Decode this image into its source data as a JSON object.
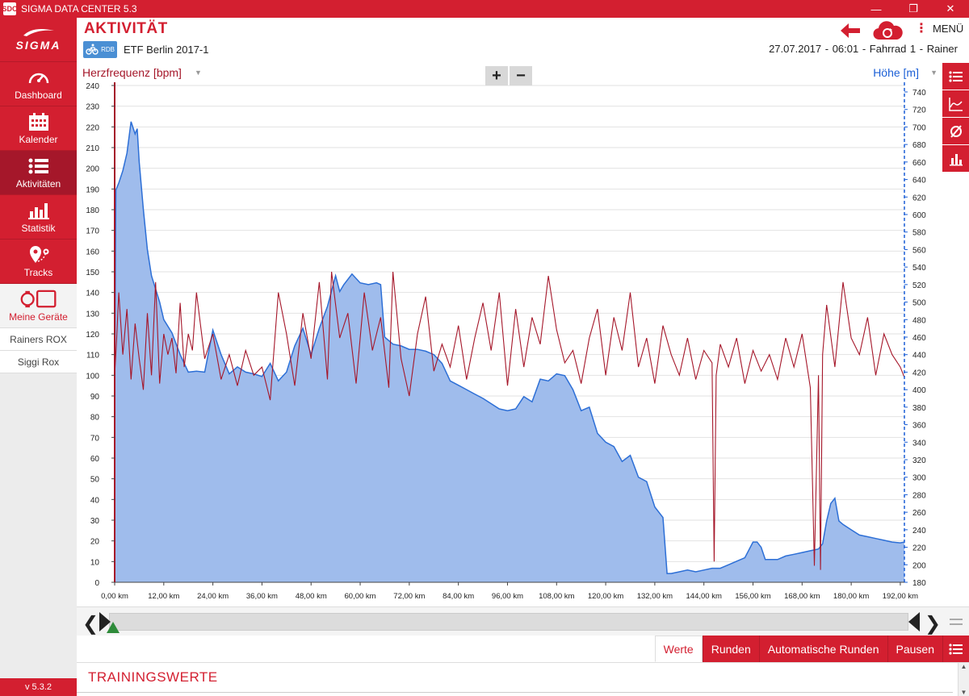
{
  "window": {
    "title": "SIGMA DATA CENTER 5.3",
    "icon_text": "SDC",
    "controls": {
      "minimize": "—",
      "restore": "❐",
      "close": "✕"
    }
  },
  "sidebar": {
    "brand": "SIGMA",
    "items": [
      {
        "label": "Dashboard",
        "icon": "gauge-icon"
      },
      {
        "label": "Kalender",
        "icon": "calendar-icon"
      },
      {
        "label": "Aktivitäten",
        "icon": "list-icon"
      },
      {
        "label": "Statistik",
        "icon": "bar-chart-icon"
      },
      {
        "label": "Tracks",
        "icon": "track-pin-icon"
      },
      {
        "label": "Meine Geräte",
        "icon": "devices-icon"
      }
    ],
    "devices": [
      "Rainers ROX",
      "Siggi Rox"
    ],
    "version": "v 5.3.2"
  },
  "header": {
    "title": "AKTIVITÄT",
    "sport_badge": "RDB",
    "activity_name": "ETF Berlin 2017-1",
    "meta": "27.07.2017  -  06:01  -  Fahrrad 1  -  Rainer",
    "menu_label": "MENÜ"
  },
  "chart_controls": {
    "zoom_in": "+",
    "zoom_out": "−"
  },
  "colors": {
    "accent": "#d31f30",
    "heart_rate": "#a5172a",
    "altitude_line": "#2d6fd6",
    "altitude_fill": "#9fbcec"
  },
  "tabs": [
    {
      "label": "Werte",
      "active": true
    },
    {
      "label": "Runden",
      "active": false
    },
    {
      "label": "Automatische Runden",
      "active": false
    },
    {
      "label": "Pausen",
      "active": false
    }
  ],
  "section_title": "TRAININGSWERTE",
  "chart_data": {
    "type": "line",
    "xlabel": "",
    "x_ticks": [
      "0,00 km",
      "12,00 km",
      "24,00 km",
      "36,00 km",
      "48,00 km",
      "60,00 km",
      "72,00 km",
      "84,00 km",
      "96,00 km",
      "108,00 km",
      "120,00 km",
      "132,00 km",
      "144,00 km",
      "156,00 km",
      "168,00 km",
      "180,00 km",
      "192,00 km"
    ],
    "xlim": [
      0,
      193
    ],
    "y_left": {
      "label": "Herzfrequenz [bpm]",
      "min": 0,
      "max": 240,
      "step": 10
    },
    "y_right": {
      "label": "Höhe [m]",
      "min": 180,
      "max": 740,
      "step": 20
    },
    "series": [
      {
        "name": "Herzfrequenz [bpm]",
        "axis": "left",
        "type": "line",
        "x": [
          0,
          0.5,
          1,
          2,
          3,
          4,
          5,
          6,
          7,
          8,
          9,
          10,
          11,
          12,
          13,
          14,
          15,
          16,
          17,
          18,
          19,
          20,
          22,
          24,
          26,
          28,
          30,
          32,
          34,
          36,
          38,
          40,
          42,
          44,
          46,
          48,
          50,
          52,
          53,
          55,
          57,
          59,
          61,
          63,
          65,
          67,
          68,
          70,
          72,
          74,
          76,
          78,
          80,
          82,
          84,
          86,
          88,
          90,
          92,
          94,
          96,
          98,
          100,
          102,
          104,
          106,
          108,
          110,
          112,
          114,
          116,
          118,
          120,
          122,
          124,
          126,
          128,
          130,
          132,
          134,
          136,
          138,
          140,
          142,
          144,
          146,
          146.5,
          147,
          148,
          150,
          152,
          154,
          156,
          158,
          160,
          162,
          164,
          166,
          168,
          170,
          171,
          172,
          172.5,
          173,
          174,
          176,
          178,
          180,
          182,
          184,
          186,
          188,
          190,
          192,
          193
        ],
        "y": [
          100,
          118,
          140,
          110,
          132,
          98,
          125,
          108,
          93,
          130,
          100,
          145,
          96,
          120,
          110,
          118,
          101,
          135,
          104,
          120,
          112,
          140,
          108,
          120,
          98,
          110,
          95,
          112,
          100,
          104,
          88,
          140,
          120,
          95,
          130,
          108,
          145,
          98,
          150,
          118,
          130,
          96,
          140,
          112,
          128,
          94,
          150,
          108,
          90,
          120,
          138,
          102,
          115,
          104,
          124,
          98,
          118,
          135,
          112,
          140,
          95,
          132,
          104,
          128,
          115,
          148,
          122,
          106,
          112,
          96,
          118,
          132,
          100,
          128,
          112,
          140,
          104,
          118,
          96,
          124,
          110,
          100,
          118,
          98,
          112,
          106,
          10,
          100,
          115,
          104,
          118,
          96,
          112,
          102,
          110,
          98,
          118,
          104,
          120,
          94,
          8,
          100,
          6,
          110,
          134,
          104,
          145,
          118,
          110,
          128,
          100,
          120,
          110,
          104,
          99
        ]
      },
      {
        "name": "Höhe [m]",
        "axis": "right",
        "type": "area",
        "x": [
          0,
          0.3,
          1,
          2,
          3,
          4,
          5,
          5.5,
          6,
          7,
          8,
          9,
          10,
          11,
          12,
          14,
          16,
          18,
          20,
          22,
          24,
          26,
          28,
          30,
          32,
          34,
          36,
          38,
          40,
          42,
          44,
          46,
          48,
          50,
          52,
          54,
          55,
          56,
          58,
          60,
          62,
          64,
          65,
          66,
          68,
          70,
          72,
          74,
          76,
          78,
          80,
          82,
          84,
          86,
          88,
          90,
          92,
          94,
          96,
          97,
          98,
          100,
          102,
          104,
          106,
          108,
          110,
          112,
          114,
          116,
          118,
          120,
          122,
          124,
          126,
          128,
          130,
          132,
          134,
          135,
          136,
          138,
          140,
          142,
          144,
          146,
          148,
          150,
          152,
          154,
          156,
          157,
          158,
          159,
          160,
          162,
          164,
          166,
          168,
          170,
          172,
          173,
          174,
          175,
          176,
          177,
          178,
          180,
          182,
          184,
          186,
          188,
          190,
          192,
          193
        ],
        "y": [
          410,
          628,
          636,
          650,
          670,
          706,
          692,
          698,
          660,
          606,
          560,
          530,
          515,
          500,
          480,
          465,
          440,
          420,
          421,
          420,
          468,
          440,
          418,
          426,
          420,
          418,
          415,
          430,
          410,
          420,
          450,
          470,
          440,
          470,
          495,
          530,
          512,
          520,
          532,
          522,
          520,
          522,
          520,
          460,
          452,
          450,
          446,
          446,
          444,
          440,
          430,
          410,
          405,
          400,
          395,
          390,
          384,
          378,
          376,
          377,
          378,
          392,
          386,
          412,
          410,
          418,
          416,
          400,
          376,
          380,
          350,
          340,
          335,
          318,
          325,
          300,
          295,
          266,
          254,
          190,
          190,
          192,
          194,
          192,
          194,
          196,
          196,
          200,
          204,
          208,
          226,
          226,
          220,
          206,
          206,
          206,
          210,
          212,
          214,
          216,
          218,
          224,
          250,
          270,
          276,
          250,
          246,
          240,
          234,
          232,
          230,
          228,
          226,
          225,
          226
        ]
      }
    ],
    "grid": true,
    "legend": "none"
  }
}
